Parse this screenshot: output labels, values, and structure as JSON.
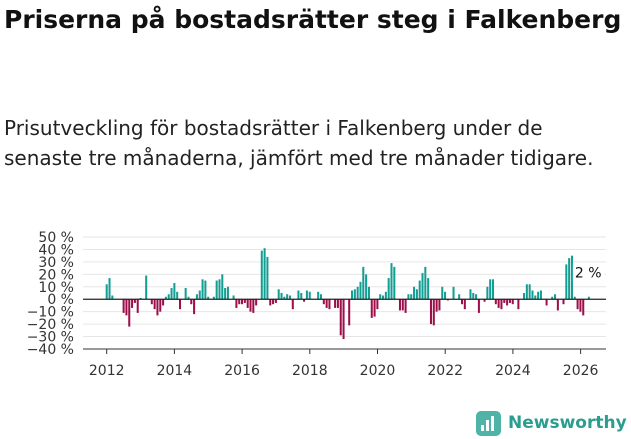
{
  "colors": {
    "positive": "#139e93",
    "negative": "#9c0f4b",
    "axis": "#333333",
    "brand": "#2a9d8f"
  },
  "brand": {
    "name": "Newsworthy"
  },
  "chart_data": {
    "type": "bar",
    "title": "Priserna på bostadsrätter steg i Falkenberg",
    "subtitle": "Prisutveckling för bostadsrätter i Falkenberg under de senaste tre månaderna, jämfört med tre månader tidigare.",
    "xlabel": "",
    "ylabel": "",
    "ylim": [
      -40,
      50
    ],
    "xlim": [
      2011.3,
      2026.75
    ],
    "y_ticks": [
      50,
      40,
      30,
      20,
      10,
      0,
      -10,
      -20,
      -30,
      -40
    ],
    "y_tick_labels": [
      "50 %",
      "40 %",
      "30 %",
      "20 %",
      "10 %",
      "0 %",
      "−10 %",
      "−20 %",
      "−30 %",
      "−40 %"
    ],
    "x_ticks": [
      2012,
      2014,
      2016,
      2018,
      2020,
      2022,
      2024,
      2026
    ],
    "x_tick_labels": [
      "2012",
      "2014",
      "2016",
      "2018",
      "2020",
      "2022",
      "2024",
      "2026"
    ],
    "start": 2012.0,
    "step": 0.0833,
    "values": [
      12,
      17,
      3,
      0,
      0,
      0,
      -11,
      -13,
      -22,
      -7,
      -3,
      -11,
      1,
      0,
      19,
      0,
      -4,
      -8,
      -13,
      -10,
      -5,
      2,
      4,
      9,
      13,
      6,
      -8,
      0,
      9,
      2,
      -4,
      -12,
      4,
      7,
      16,
      15,
      2,
      0,
      2,
      15,
      16,
      20,
      9,
      10,
      0,
      3,
      -7,
      -4,
      -4,
      -3,
      -7,
      -10,
      -11,
      -5,
      0,
      39,
      41,
      34,
      -5,
      -4,
      -3,
      8,
      5,
      2,
      4,
      3,
      -8,
      0,
      7,
      5,
      -2,
      7,
      6,
      0,
      0,
      6,
      4,
      -4,
      -7,
      -8,
      0,
      -7,
      -7,
      -29,
      -32,
      0,
      -21,
      7,
      8,
      10,
      14,
      26,
      20,
      10,
      -15,
      -14,
      -8,
      4,
      3,
      6,
      17,
      29,
      26,
      0,
      -9,
      -9,
      -11,
      4,
      4,
      10,
      8,
      15,
      21,
      26,
      17,
      -20,
      -21,
      -10,
      -9,
      10,
      6,
      -1,
      0,
      10,
      0,
      4,
      -4,
      -8,
      0,
      8,
      5,
      4,
      -11,
      0,
      -2,
      10,
      16,
      16,
      -4,
      -7,
      -8,
      -3,
      -5,
      -3,
      -4,
      0,
      -8,
      0,
      5,
      12,
      12,
      7,
      3,
      6,
      7,
      0,
      -5,
      0,
      2,
      4,
      -9,
      0,
      -4,
      28,
      33,
      35,
      2,
      -8,
      -10,
      -13,
      0,
      2
    ],
    "annotation": {
      "text": "2 %"
    }
  }
}
